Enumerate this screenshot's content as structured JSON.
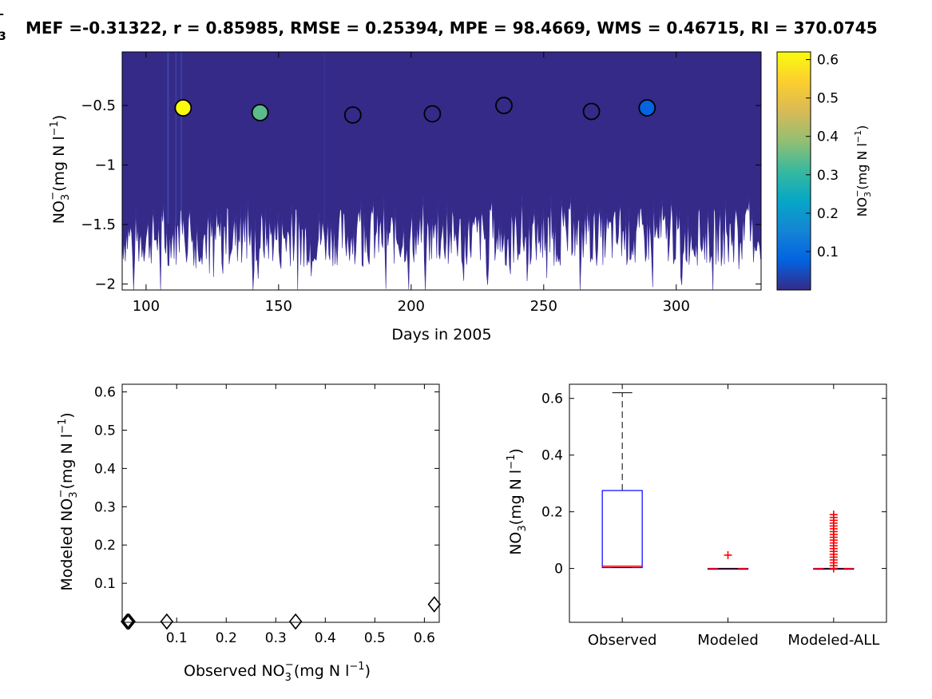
{
  "figure": {
    "title": "MEF =-0.31322, r = 0.85985, RMSE = 0.25394, MPE = 98.4669, WMS = 0.46715, RI = 370.0745",
    "title_prefix": "-\n3"
  },
  "chart_data": [
    {
      "type": "scatter",
      "name": "timeseries",
      "xlabel": "Days in 2005",
      "ylabel_main": "NO",
      "ylabel_sub": "3",
      "ylabel_sup": "−",
      "ylabel_unit": "(mg N l",
      "ylabel_unit_sup": "−1",
      "ylabel_close": ")",
      "xlim": [
        91,
        332
      ],
      "ylim": [
        -2.05,
        -0.05
      ],
      "xticks": [
        100,
        150,
        200,
        250,
        300
      ],
      "yticks": [
        -2,
        -1.5,
        -1,
        -0.5
      ],
      "ytick_labels": [
        "−2",
        "−1.5",
        "−1",
        "−0.5"
      ],
      "band_floor_mean": -1.6,
      "observations": [
        {
          "x": 114,
          "y": -0.52,
          "value": 0.62
        },
        {
          "x": 143,
          "y": -0.56,
          "value": 0.34
        },
        {
          "x": 178,
          "y": -0.58,
          "value": 0.0
        },
        {
          "x": 208,
          "y": -0.57,
          "value": 0.0
        },
        {
          "x": 235,
          "y": -0.5,
          "value": 0.0
        },
        {
          "x": 268,
          "y": -0.55,
          "value": 0.0
        },
        {
          "x": 289,
          "y": -0.52,
          "value": 0.08
        }
      ],
      "colorbar": {
        "label_main": "NO",
        "label_sub": "3",
        "label_sup": "−",
        "label_unit": "(mg N l",
        "label_unit_sup": "−1",
        "label_close": ")",
        "range": [
          0,
          0.62
        ],
        "ticks": [
          0.1,
          0.2,
          0.3,
          0.4,
          0.5,
          0.6
        ],
        "tick_labels": [
          "0.1",
          "0.2",
          "0.3",
          "0.4",
          "0.5",
          "0.6"
        ],
        "colormap": "parula",
        "colors": [
          "#352a87",
          "#0363e1",
          "#1485d4",
          "#06a7c6",
          "#38b99e",
          "#92bf73",
          "#d9ba56",
          "#fcce2e",
          "#f9fb0e"
        ]
      }
    },
    {
      "type": "scatter",
      "name": "observed-vs-modeled",
      "xlabel_main": "Observed NO",
      "xlabel_sub": "3",
      "xlabel_sup": "−",
      "xlabel_unit": "(mg N l",
      "xlabel_unit_sup": "−1",
      "xlabel_close": ")",
      "ylabel_main": "Modeled NO",
      "ylabel_sub": "3",
      "ylabel_sup": "−",
      "ylabel_unit": "(mg N l",
      "ylabel_unit_sup": "−1",
      "ylabel_close": ")",
      "xlim": [
        -0.01,
        0.63
      ],
      "ylim": [
        -0.002,
        0.62
      ],
      "xticks": [
        0.1,
        0.2,
        0.3,
        0.4,
        0.5,
        0.6
      ],
      "yticks": [
        0.1,
        0.2,
        0.3,
        0.4,
        0.5,
        0.6
      ],
      "tick_labels": [
        "0.1",
        "0.2",
        "0.3",
        "0.4",
        "0.5",
        "0.6"
      ],
      "marker": "diamond",
      "points": [
        {
          "x": 0.0,
          "y": 0.0
        },
        {
          "x": 0.002,
          "y": 0.0
        },
        {
          "x": 0.004,
          "y": 0.0
        },
        {
          "x": 0.08,
          "y": 0.0
        },
        {
          "x": 0.34,
          "y": 0.0
        },
        {
          "x": 0.62,
          "y": 0.045
        }
      ]
    },
    {
      "type": "box",
      "name": "distribution",
      "ylabel_main": "NO",
      "ylabel_sub": "3",
      "ylabel_unit": "(mg N l",
      "ylabel_unit_sup": "−1",
      "ylabel_close": ")",
      "ylim": [
        -0.19,
        0.65
      ],
      "yticks": [
        0,
        0.2,
        0.4,
        0.6
      ],
      "ytick_labels": [
        "0",
        "0.2",
        "0.4",
        "0.6"
      ],
      "categories": [
        "Observed",
        "Modeled",
        "Modeled-ALL"
      ],
      "boxes": [
        {
          "q1": 0.003,
          "median": 0.008,
          "q3": 0.275,
          "whisker_low": 0.003,
          "whisker_high": 0.62,
          "outliers": []
        },
        {
          "q1": 0.0,
          "median": 0.0,
          "q3": 0.0,
          "whisker_low": 0.0,
          "whisker_high": 0.0,
          "outliers": [
            0.047
          ]
        },
        {
          "q1": 0.0,
          "median": 0.0,
          "q3": 0.0,
          "whisker_low": 0.0,
          "whisker_high": 0.0,
          "outliers": [
            0.0,
            0.01,
            0.02,
            0.03,
            0.04,
            0.05,
            0.06,
            0.07,
            0.08,
            0.09,
            0.1,
            0.11,
            0.12,
            0.13,
            0.14,
            0.15,
            0.16,
            0.17,
            0.18,
            0.19
          ]
        }
      ],
      "box_color": "#0000ff",
      "median_color": "#ff0000",
      "outlier_color": "#ff0000"
    }
  ]
}
